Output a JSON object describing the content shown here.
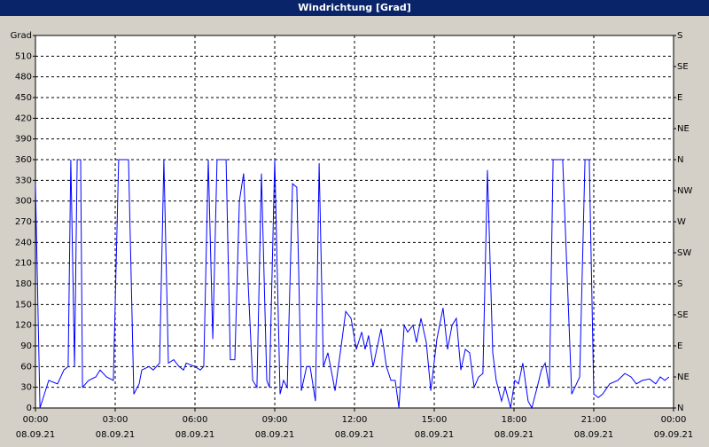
{
  "chart_data": {
    "type": "line",
    "title": "Windrichtung [Grad]",
    "x": [
      0,
      0.17,
      0.5,
      0.83,
      1.07,
      1.23,
      1.33,
      1.47,
      1.57,
      1.7,
      1.77,
      2.0,
      2.27,
      2.43,
      2.67,
      2.93,
      3.13,
      3.5,
      3.7,
      3.9,
      4.0,
      4.27,
      4.43,
      4.67,
      4.83,
      5.0,
      5.2,
      5.4,
      5.57,
      5.67,
      6.0,
      6.2,
      6.33,
      6.5,
      6.67,
      6.83,
      7.17,
      7.33,
      7.5,
      7.67,
      7.83,
      8.0,
      8.17,
      8.33,
      8.5,
      8.7,
      8.8,
      9.0,
      9.2,
      9.33,
      9.47,
      9.67,
      9.83,
      10.0,
      10.2,
      10.33,
      10.53,
      10.67,
      10.83,
      11.0,
      11.27,
      11.5,
      11.67,
      11.87,
      12.07,
      12.27,
      12.4,
      12.53,
      12.7,
      13.0,
      13.2,
      13.37,
      13.53,
      13.67,
      13.87,
      14.0,
      14.2,
      14.33,
      14.5,
      14.7,
      14.87,
      15.1,
      15.33,
      15.5,
      15.67,
      15.83,
      16.0,
      16.17,
      16.33,
      16.5,
      16.67,
      16.83,
      17.0,
      17.2,
      17.33,
      17.53,
      17.67,
      17.87,
      18.03,
      18.17,
      18.33,
      18.53,
      18.67,
      18.87,
      19.03,
      19.17,
      19.33,
      19.47,
      19.83,
      20.17,
      20.47,
      20.67,
      20.83,
      21.0,
      21.17,
      21.33,
      21.6,
      21.9,
      22.17,
      22.4,
      22.6,
      22.83,
      23.1,
      23.33,
      23.5,
      23.67,
      23.83
    ],
    "series": [
      {
        "color": "#0000ff",
        "values": [
          325,
          0,
          40,
          35,
          55,
          60,
          360,
          60,
          360,
          360,
          30,
          40,
          45,
          55,
          45,
          40,
          360,
          360,
          20,
          35,
          55,
          60,
          55,
          65,
          360,
          65,
          70,
          60,
          55,
          65,
          60,
          55,
          60,
          360,
          100,
          360,
          360,
          70,
          70,
          300,
          340,
          180,
          40,
          30,
          340,
          40,
          30,
          360,
          20,
          40,
          30,
          325,
          320,
          25,
          60,
          60,
          10,
          355,
          60,
          80,
          25,
          90,
          140,
          130,
          85,
          110,
          85,
          105,
          60,
          115,
          60,
          40,
          40,
          0,
          120,
          110,
          120,
          95,
          130,
          95,
          25,
          100,
          145,
          85,
          120,
          130,
          55,
          85,
          80,
          30,
          45,
          50,
          345,
          80,
          40,
          10,
          30,
          0,
          40,
          35,
          65,
          10,
          0,
          30,
          55,
          65,
          30,
          360,
          360,
          20,
          45,
          360,
          360,
          20,
          15,
          20,
          35,
          40,
          50,
          45,
          35,
          40,
          42,
          35,
          45,
          40,
          45
        ]
      }
    ],
    "xlim": [
      0,
      24
    ],
    "xticks": [
      {
        "value": 0,
        "label": "00:00",
        "date": "08.09.21"
      },
      {
        "value": 3,
        "label": "03:00",
        "date": "08.09.21"
      },
      {
        "value": 6,
        "label": "06:00",
        "date": "08.09.21"
      },
      {
        "value": 9,
        "label": "09:00",
        "date": "08.09.21"
      },
      {
        "value": 12,
        "label": "12:00",
        "date": "08.09.21"
      },
      {
        "value": 15,
        "label": "15:00",
        "date": "08.09.21"
      },
      {
        "value": 18,
        "label": "18:00",
        "date": "08.09.21"
      },
      {
        "value": 21,
        "label": "21:00",
        "date": "08.09.21"
      },
      {
        "value": 24,
        "label": "00:00",
        "date": "09.09.21"
      }
    ],
    "ylim": [
      0,
      540
    ],
    "yticks": [
      0,
      30,
      60,
      90,
      120,
      150,
      180,
      210,
      240,
      270,
      300,
      330,
      360,
      390,
      420,
      450,
      480,
      510,
      {
        "value": 540,
        "label": "Grad"
      }
    ],
    "y2lim": [
      0,
      540
    ],
    "y2ticks": [
      {
        "value": 0,
        "label": "N"
      },
      {
        "value": 45,
        "label": "NE"
      },
      {
        "value": 90,
        "label": "E"
      },
      {
        "value": 135,
        "label": "SE"
      },
      {
        "value": 180,
        "label": "S"
      },
      {
        "value": 225,
        "label": "SW"
      },
      {
        "value": 270,
        "label": "W"
      },
      {
        "value": 315,
        "label": "NW"
      },
      {
        "value": 360,
        "label": "N"
      },
      {
        "value": 405,
        "label": "NE"
      },
      {
        "value": 450,
        "label": "E"
      },
      {
        "value": 495,
        "label": "SE"
      },
      {
        "value": 540,
        "label": "S"
      }
    ],
    "grid": true
  }
}
